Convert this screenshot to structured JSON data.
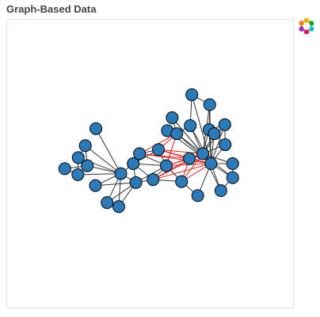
{
  "header": {
    "title": "Graph-Based Data"
  },
  "toolbar": {
    "logo_icon": "bokeh-logo-icon"
  },
  "colors": {
    "node_fill": "#2b7bba",
    "node_stroke": "#000000",
    "edge": "#333333",
    "edge_highlight": "#e31a1c"
  },
  "chart_data": {
    "type": "network",
    "title": "Graph-Based Data",
    "xlabel": "",
    "ylabel": "",
    "xlim": [
      -1.2,
      1.2
    ],
    "ylim": [
      -1.2,
      1.2
    ],
    "grid": false,
    "axes_visible": false,
    "nodes": [
      {
        "id": 0,
        "x": -0.142,
        "y": 0.0
      },
      {
        "id": 1,
        "x": -0.246,
        "y": -0.083
      },
      {
        "id": 2,
        "x": 0.136,
        "y": -0.017
      },
      {
        "id": 3,
        "x": 0.07,
        "y": 0.117
      },
      {
        "id": 4,
        "x": -0.361,
        "y": -0.325
      },
      {
        "id": 5,
        "x": -0.263,
        "y": -0.358
      },
      {
        "id": 6,
        "x": -0.459,
        "y": -0.183
      },
      {
        "id": 7,
        "x": -0.455,
        "y": 0.292
      },
      {
        "id": 8,
        "x": 0.33,
        "y": 0.042
      },
      {
        "id": 9,
        "x": 0.264,
        "y": -0.15
      },
      {
        "id": 10,
        "x": -0.544,
        "y": 0.15
      },
      {
        "id": 11,
        "x": -0.716,
        "y": -0.042
      },
      {
        "id": 12,
        "x": -0.603,
        "y": 0.05
      },
      {
        "id": 13,
        "x": -0.089,
        "y": 0.083
      },
      {
        "id": 14,
        "x": -0.527,
        "y": -0.017
      },
      {
        "id": 15,
        "x": -0.119,
        "y": -0.158
      },
      {
        "id": 16,
        "x": -0.606,
        "y": -0.092
      },
      {
        "id": 17,
        "x": 0.693,
        "y": 0.0
      },
      {
        "id": 18,
        "x": 0.594,
        "y": -0.225
      },
      {
        "id": 19,
        "x": 0.511,
        "y": 0.0
      },
      {
        "id": 20,
        "x": 0.185,
        "y": 0.383
      },
      {
        "id": 21,
        "x": 0.145,
        "y": 0.275
      },
      {
        "id": 22,
        "x": 0.35,
        "y": 0.575
      },
      {
        "id": 23,
        "x": 0.337,
        "y": 0.317
      },
      {
        "id": 24,
        "x": 0.5,
        "y": 0.492
      },
      {
        "id": 25,
        "x": 0.495,
        "y": 0.283
      },
      {
        "id": 26,
        "x": 0.627,
        "y": 0.325
      },
      {
        "id": 27,
        "x": 0.693,
        "y": -0.117
      },
      {
        "id": 28,
        "x": 0.4,
        "y": -0.267
      },
      {
        "id": 29,
        "x": 0.63,
        "y": 0.158
      },
      {
        "id": 30,
        "x": 0.224,
        "y": 0.25
      },
      {
        "id": 31,
        "x": 0.538,
        "y": 0.25
      },
      {
        "id": 32,
        "x": 0.025,
        "y": -0.133
      },
      {
        "id": 33,
        "x": 0.442,
        "y": 0.083
      }
    ],
    "edges": [
      [
        11,
        14
      ],
      [
        11,
        16
      ],
      [
        14,
        10
      ],
      [
        14,
        12
      ],
      [
        16,
        12
      ],
      [
        12,
        10
      ],
      [
        12,
        1
      ],
      [
        14,
        1
      ],
      [
        16,
        1
      ],
      [
        10,
        1
      ],
      [
        7,
        1
      ],
      [
        1,
        0
      ],
      [
        1,
        15
      ],
      [
        1,
        4
      ],
      [
        1,
        5
      ],
      [
        1,
        6
      ],
      [
        0,
        13
      ],
      [
        0,
        15
      ],
      [
        0,
        3
      ],
      [
        0,
        2
      ],
      [
        0,
        32
      ],
      [
        13,
        3
      ],
      [
        13,
        2
      ],
      [
        3,
        2
      ],
      [
        2,
        15
      ],
      [
        2,
        32
      ],
      [
        2,
        9
      ],
      [
        15,
        32
      ],
      [
        15,
        4
      ],
      [
        15,
        5
      ],
      [
        15,
        6
      ],
      [
        32,
        9
      ],
      [
        4,
        5
      ],
      [
        9,
        28
      ],
      [
        28,
        19
      ],
      [
        19,
        17
      ],
      [
        19,
        27
      ],
      [
        19,
        18
      ],
      [
        19,
        29
      ],
      [
        19,
        31
      ],
      [
        19,
        26
      ],
      [
        19,
        25
      ],
      [
        19,
        24
      ],
      [
        19,
        23
      ],
      [
        19,
        22
      ],
      [
        19,
        21
      ],
      [
        19,
        20
      ],
      [
        19,
        30
      ],
      [
        33,
        17
      ],
      [
        33,
        27
      ],
      [
        33,
        18
      ],
      [
        33,
        29
      ],
      [
        33,
        31
      ],
      [
        33,
        26
      ],
      [
        33,
        25
      ],
      [
        33,
        24
      ],
      [
        33,
        23
      ],
      [
        33,
        20
      ],
      [
        33,
        30
      ],
      [
        22,
        24
      ],
      [
        22,
        23
      ],
      [
        24,
        25
      ],
      [
        20,
        30
      ],
      [
        21,
        30
      ],
      [
        23,
        30
      ],
      [
        25,
        26
      ],
      [
        29,
        26
      ],
      [
        17,
        27
      ],
      [
        18,
        27
      ],
      [
        31,
        29
      ],
      [
        9,
        2
      ]
    ],
    "highlighted_edges": [
      [
        3,
        33
      ],
      [
        3,
        19
      ],
      [
        3,
        30
      ],
      [
        3,
        8
      ],
      [
        13,
        30
      ],
      [
        13,
        19
      ],
      [
        13,
        8
      ],
      [
        2,
        19
      ],
      [
        2,
        8
      ],
      [
        2,
        33
      ],
      [
        2,
        30
      ],
      [
        32,
        8
      ],
      [
        32,
        33
      ],
      [
        32,
        19
      ],
      [
        9,
        19
      ],
      [
        9,
        33
      ],
      [
        9,
        8
      ],
      [
        8,
        19
      ],
      [
        8,
        33
      ]
    ]
  }
}
